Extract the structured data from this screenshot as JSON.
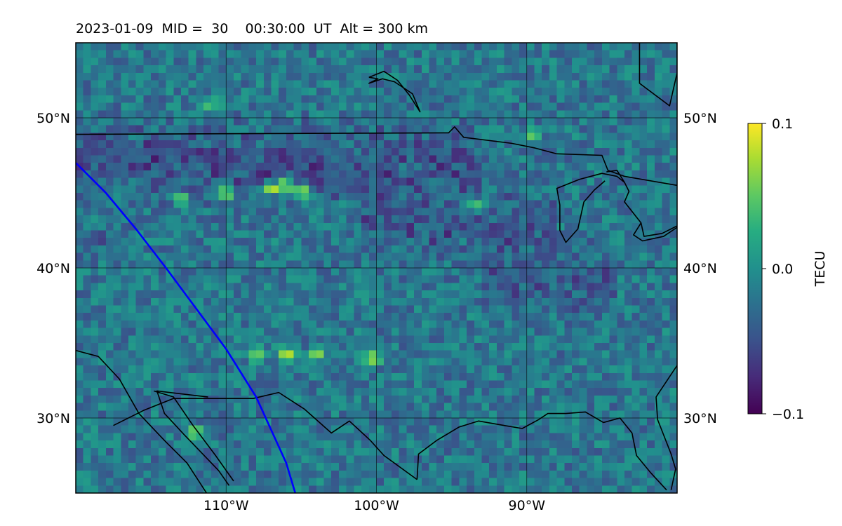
{
  "chart_data": {
    "type": "heatmap",
    "title": "2023-01-09  MID =  30    00:30:00  UT  Alt = 300 km",
    "projection": "plate carree map",
    "lon_range": [
      -120,
      -80
    ],
    "lat_range": [
      25,
      55
    ],
    "x_ticks": [
      {
        "value": -110,
        "label": "110°W"
      },
      {
        "value": -100,
        "label": "100°W"
      },
      {
        "value": -90,
        "label": "90°W"
      }
    ],
    "y_ticks": [
      {
        "value": 50,
        "label": "50°N"
      },
      {
        "value": 40,
        "label": "40°N"
      },
      {
        "value": 30,
        "label": "30°N"
      }
    ],
    "grid": true,
    "colormap": "viridis",
    "colorbar": {
      "label": "TECU",
      "range": [
        -0.1,
        0.1
      ],
      "ticks": [
        {
          "value": 0.1,
          "label": "0.1"
        },
        {
          "value": 0.0,
          "label": "0.0"
        },
        {
          "value": -0.1,
          "label": "−0.1"
        }
      ]
    },
    "field_summary": {
      "grid_resolution_deg": 0.5,
      "background_mean": -0.02,
      "texture_amplitude": 0.03,
      "low_bands": [
        {
          "lat": 47,
          "lon_from": -120,
          "lon_to": -93,
          "value": -0.07
        },
        {
          "lat": 43,
          "lon_from": -101,
          "lon_to": -88,
          "value": -0.06
        },
        {
          "lat": 39,
          "lon_from": -93,
          "lon_to": -84,
          "value": -0.05
        }
      ],
      "hotspots": [
        {
          "lon": -110,
          "lat": 45,
          "value": 0.1
        },
        {
          "lon": -107,
          "lat": 45.3,
          "value": 0.1
        },
        {
          "lon": -106,
          "lat": 45.5,
          "value": 0.1
        },
        {
          "lon": -105,
          "lat": 45,
          "value": 0.1
        },
        {
          "lon": -108,
          "lat": 34.3,
          "value": 0.09
        },
        {
          "lon": -106,
          "lat": 34.2,
          "value": 0.1
        },
        {
          "lon": -104,
          "lat": 34.2,
          "value": 0.08
        },
        {
          "lon": -100.3,
          "lat": 34,
          "value": 0.09
        },
        {
          "lon": -112,
          "lat": 29,
          "value": 0.08
        },
        {
          "lon": -113,
          "lat": 44.6,
          "value": 0.07
        },
        {
          "lon": -93.3,
          "lat": 44.2,
          "value": 0.08
        },
        {
          "lon": -111,
          "lat": 51,
          "value": 0.06
        },
        {
          "lon": -89.7,
          "lat": 48.8,
          "value": 0.06
        },
        {
          "lon": -118.5,
          "lat": 42,
          "value": -0.1
        },
        {
          "lon": -110.5,
          "lat": 47,
          "value": -0.09
        },
        {
          "lon": -107.5,
          "lat": 46.4,
          "value": -0.09
        },
        {
          "lon": -104,
          "lat": 46.6,
          "value": -0.09
        }
      ]
    },
    "overlays": [
      {
        "kind": "coastlines_and_borders",
        "color": "#000000"
      },
      {
        "kind": "line",
        "name": "",
        "color": "#0000ff",
        "points": [
          [
            -120,
            47
          ],
          [
            -118,
            45
          ],
          [
            -116,
            42.6
          ],
          [
            -114,
            40
          ],
          [
            -112,
            37.3
          ],
          [
            -110,
            34.6
          ],
          [
            -108,
            31.4
          ],
          [
            -107,
            29.2
          ],
          [
            -106,
            27
          ],
          [
            -105.4,
            25
          ]
        ]
      }
    ]
  }
}
